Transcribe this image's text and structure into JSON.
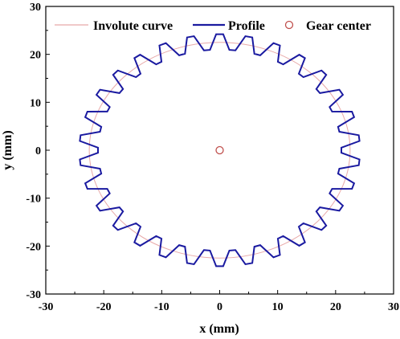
{
  "chart_data": {
    "type": "line",
    "xlabel": "x (mm)",
    "ylabel": "y (mm)",
    "xlim": [
      -30,
      30
    ],
    "ylim": [
      -30,
      30
    ],
    "xticks": [
      -30,
      -20,
      -10,
      0,
      10,
      20,
      30
    ],
    "yticks": [
      -30,
      -20,
      -10,
      0,
      10,
      20,
      30
    ],
    "grid": false,
    "legend_placement": "top",
    "series": [
      {
        "name": "Involute curve",
        "kind": "circle",
        "center": [
          0,
          0
        ],
        "radius": 22.5,
        "color": "#e8a9a9"
      },
      {
        "name": "Profile",
        "kind": "gear",
        "center": [
          0,
          0
        ],
        "teeth": 30,
        "tip_radius": 24.2,
        "root_radius": 21.0,
        "color": "#1a1aa0"
      },
      {
        "name": "Gear center",
        "kind": "marker",
        "points": [
          [
            0,
            0
          ]
        ],
        "color": "#c0504d"
      }
    ]
  }
}
